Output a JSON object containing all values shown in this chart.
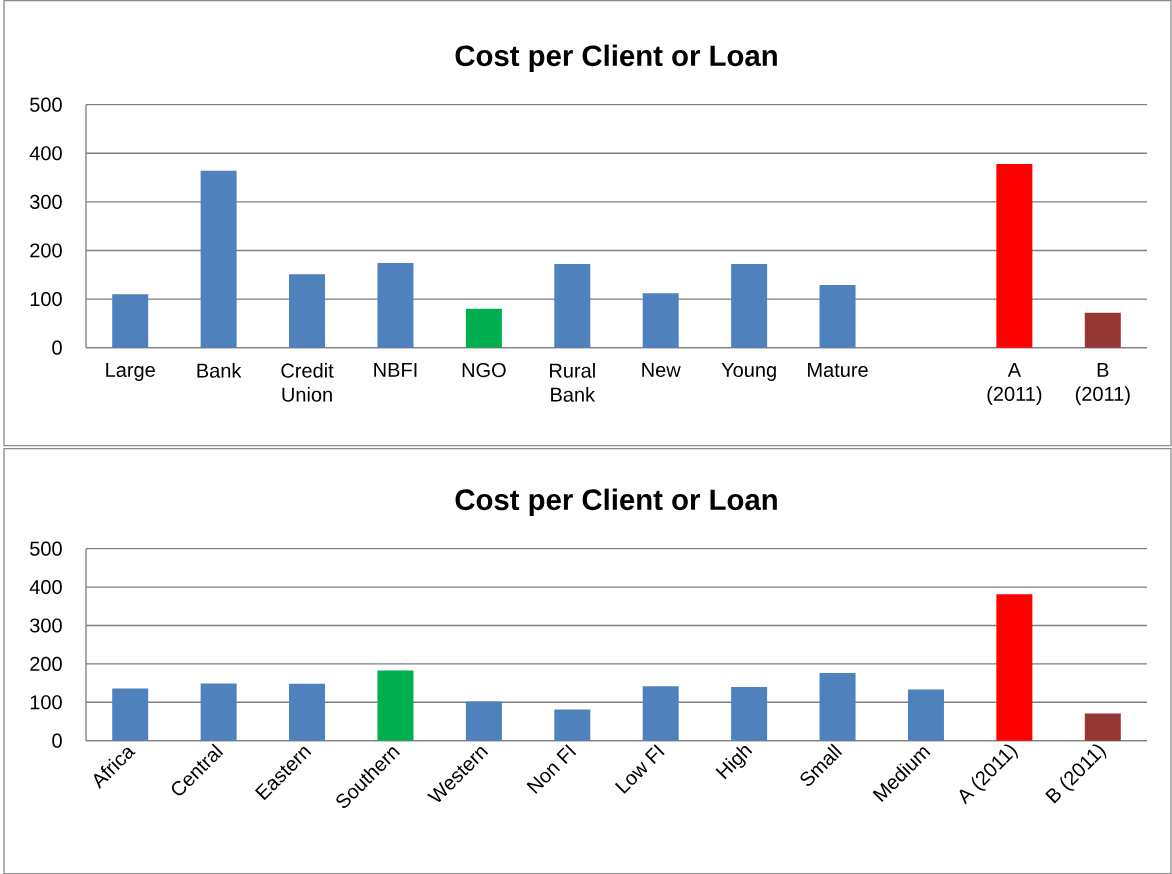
{
  "chart_data": [
    {
      "type": "bar",
      "title": "Cost per Client or Loan",
      "categories": [
        "Large",
        "Bank",
        "Credit Union",
        "NBFI",
        "NGO",
        "Rural Bank",
        "New",
        "Young",
        "Mature",
        null,
        "A (2011)",
        "B (2011)"
      ],
      "values": [
        110,
        364,
        151,
        174,
        80,
        172,
        112,
        172,
        129,
        null,
        378,
        72
      ],
      "colors": [
        "#4f81bd",
        "#4f81bd",
        "#4f81bd",
        "#4f81bd",
        "#00b050",
        "#4f81bd",
        "#4f81bd",
        "#4f81bd",
        "#4f81bd",
        "#4f81bd",
        "#ff0000",
        "#953735"
      ],
      "ylim": [
        0,
        500
      ],
      "yticks": [
        0,
        100,
        200,
        300,
        400,
        500
      ],
      "grid": "y"
    },
    {
      "type": "bar",
      "title": "Cost per Client or Loan",
      "categories": [
        "Africa",
        "Central",
        "Eastern",
        "Southern",
        "Western",
        "Non FI",
        "Low FI",
        "High",
        "Small",
        "Medium",
        "A (2011)",
        "B (2011)"
      ],
      "values": [
        136,
        149,
        148,
        183,
        102,
        81,
        142,
        140,
        176,
        133,
        381,
        71
      ],
      "colors": [
        "#4f81bd",
        "#4f81bd",
        "#4f81bd",
        "#00b050",
        "#4f81bd",
        "#4f81bd",
        "#4f81bd",
        "#4f81bd",
        "#4f81bd",
        "#4f81bd",
        "#ff0000",
        "#953735"
      ],
      "ylim": [
        0,
        500
      ],
      "yticks": [
        0,
        100,
        200,
        300,
        400,
        500
      ],
      "grid": "y"
    }
  ]
}
